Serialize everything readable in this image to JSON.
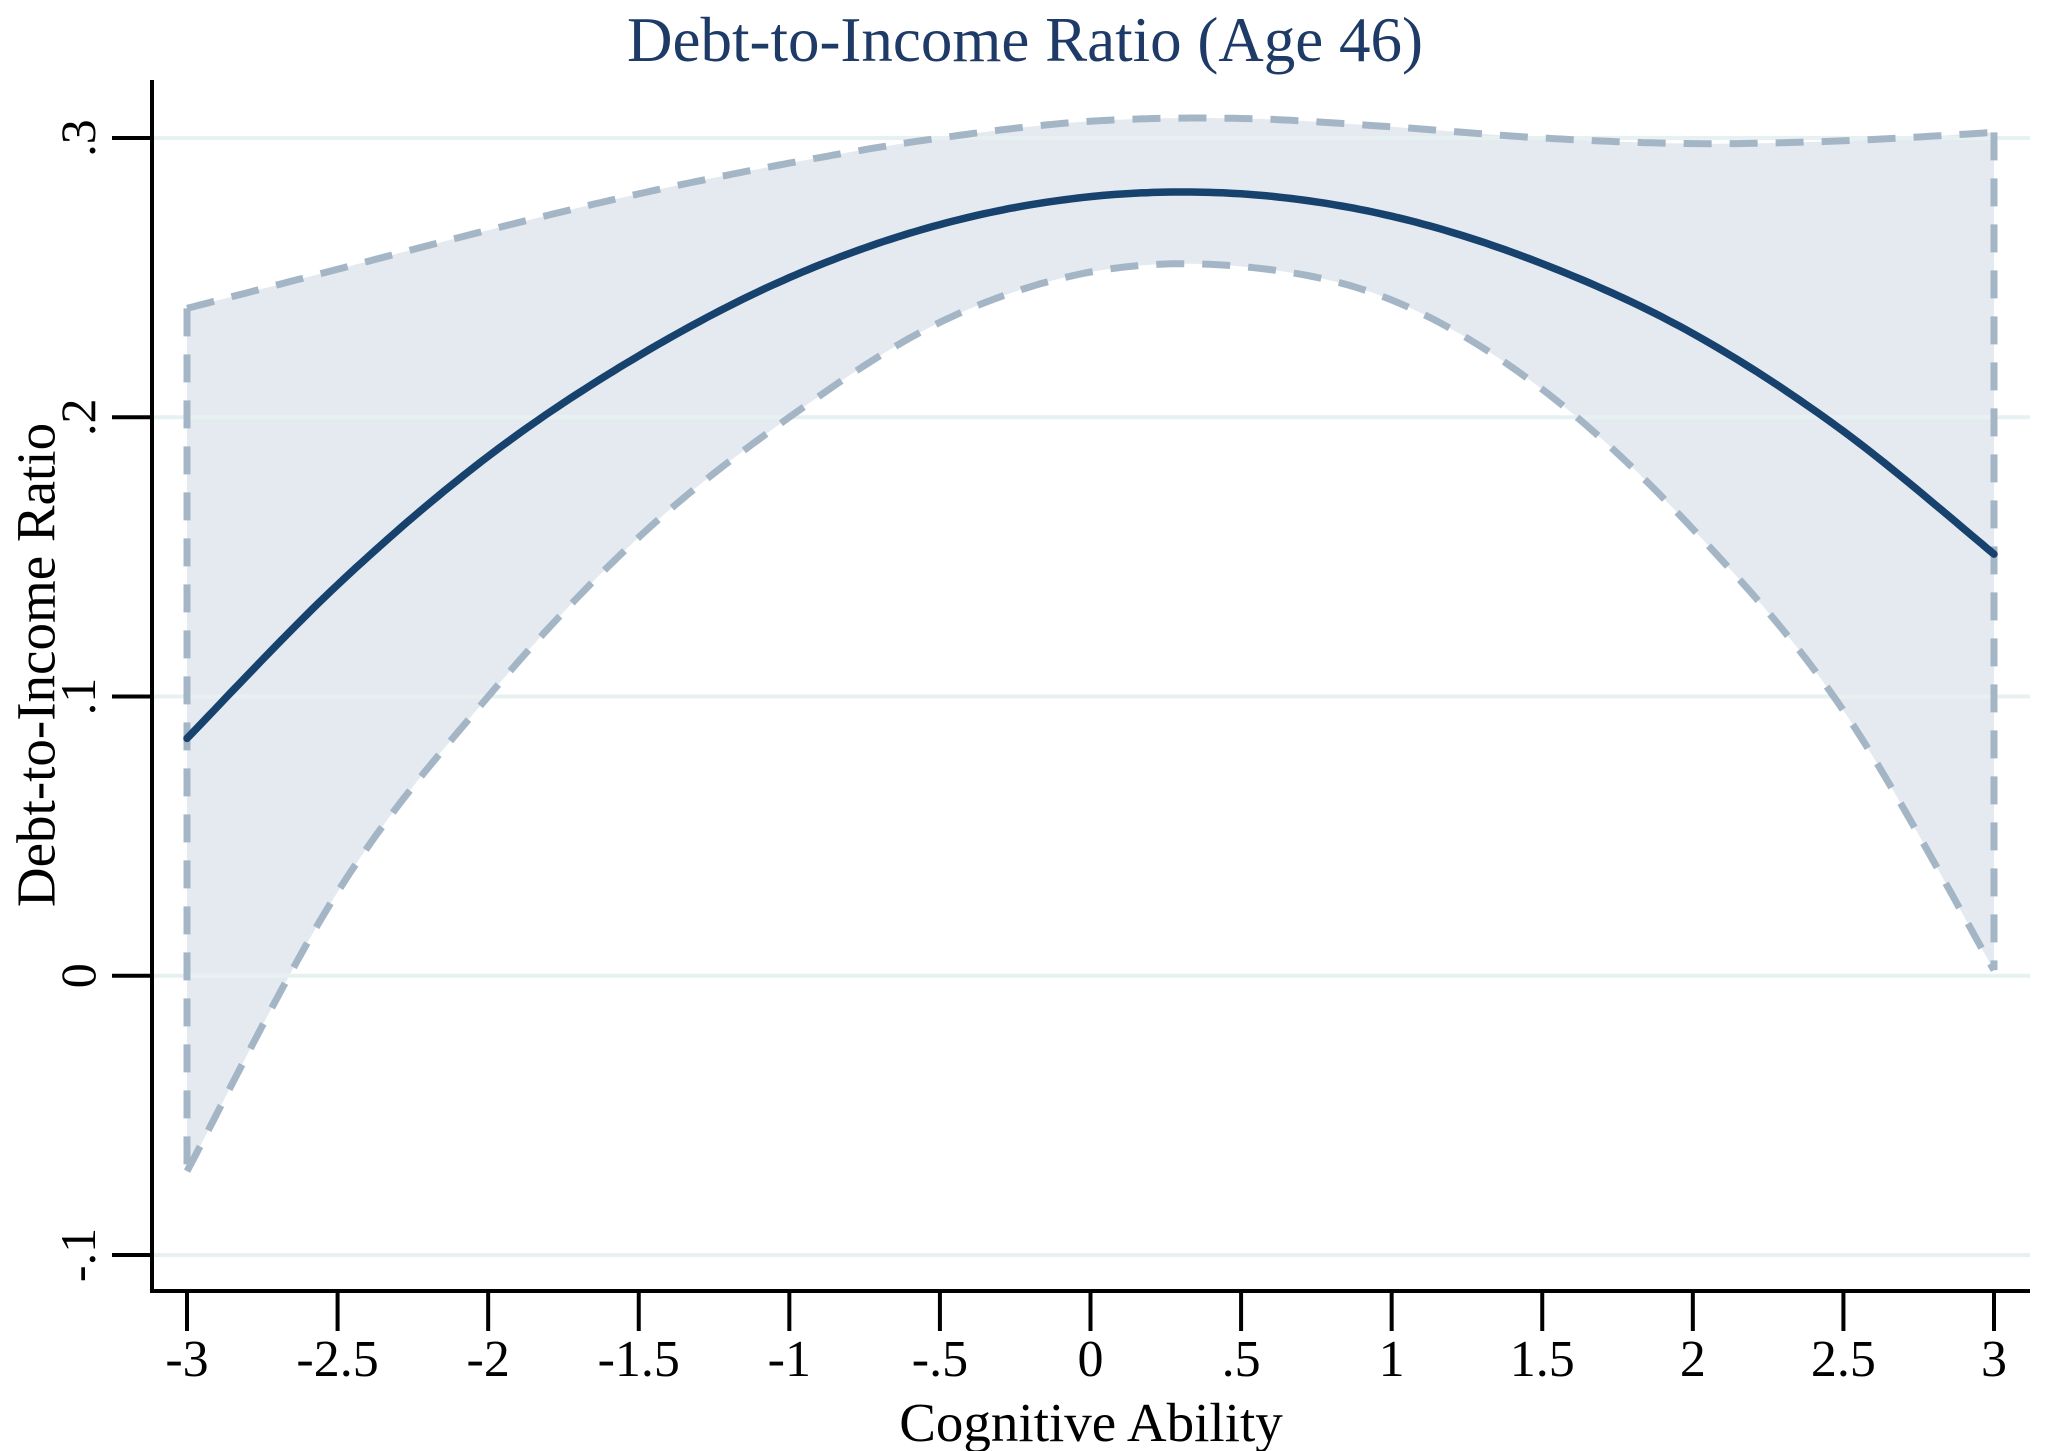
{
  "colors": {
    "title": "#1e3a66",
    "fit_line": "#17426e",
    "ci_dash": "#a4b6c6",
    "band_fill": "#e5eaf0",
    "grid": "#e8f1f2",
    "axis": "#000000",
    "background": "#ffffff"
  },
  "chart_data": {
    "type": "line",
    "title": "Debt-to-Income Ratio (Age 46)",
    "xlabel": "Cognitive Ability",
    "ylabel": "Debt-to-Income Ratio",
    "xlim": [
      -3.12,
      3.12
    ],
    "ylim": [
      -0.113,
      0.319
    ],
    "grid": "horizontal",
    "legend": "none",
    "x_ticks": {
      "values": [
        -3,
        -2.5,
        -2,
        -1.5,
        -1,
        -0.5,
        0,
        0.5,
        1,
        1.5,
        2,
        2.5,
        3
      ],
      "labels": [
        "-3",
        "-2.5",
        "-2",
        "-1.5",
        "-1",
        "-.5",
        "0",
        ".5",
        "1",
        "1.5",
        "2",
        "2.5",
        "3"
      ]
    },
    "y_ticks": {
      "values": [
        0.3,
        0.2,
        0.1,
        0,
        -0.1
      ],
      "labels": [
        ".3",
        ".2",
        ".1",
        "0",
        "-.1"
      ]
    },
    "x": [
      -3,
      -2.5,
      -2,
      -1.5,
      -1,
      -0.5,
      0,
      0.5,
      1,
      1.5,
      2,
      2.5,
      3
    ],
    "series": [
      {
        "name": "fitted-line",
        "style": "solid",
        "values": [
          0.085,
          0.14,
          0.186,
          0.222,
          0.25,
          0.269,
          0.279,
          0.28,
          0.272,
          0.255,
          0.23,
          0.195,
          0.151
        ]
      },
      {
        "name": "ci-upper",
        "style": "dashed",
        "values": [
          0.239,
          0.253,
          0.267,
          0.28,
          0.291,
          0.3,
          0.306,
          0.307,
          0.304,
          0.3,
          0.298,
          0.299,
          0.302
        ]
      },
      {
        "name": "ci-lower",
        "style": "dashed",
        "values": [
          -0.07,
          0.03,
          0.1,
          0.157,
          0.2,
          0.234,
          0.252,
          0.254,
          0.242,
          0.21,
          0.16,
          0.095,
          0.002
        ]
      }
    ],
    "band": {
      "between": [
        "ci-upper",
        "ci-lower"
      ]
    }
  }
}
